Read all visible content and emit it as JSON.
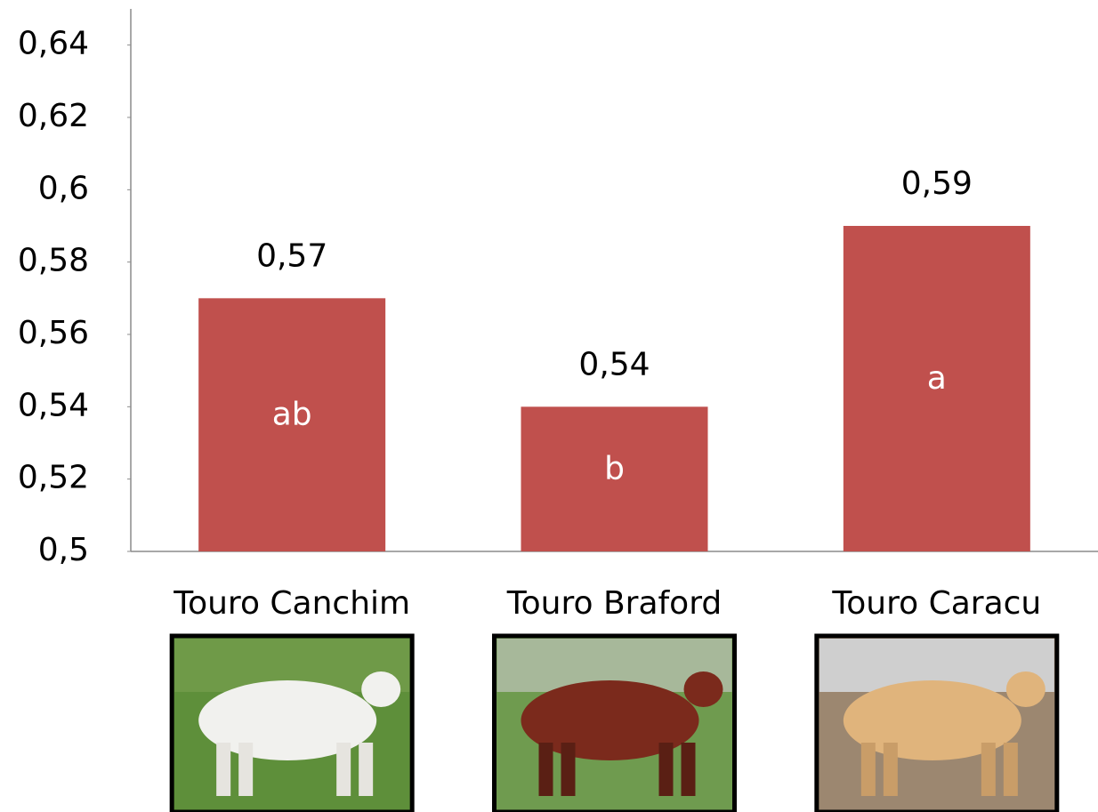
{
  "chart_data": {
    "type": "bar",
    "categories": [
      "Touro Canchim",
      "Touro Braford",
      "Touro Caracu"
    ],
    "values": [
      0.57,
      0.54,
      0.59
    ],
    "value_labels": [
      "0,57",
      "0,54",
      "0,59"
    ],
    "annotations": [
      "ab",
      "b",
      "a"
    ],
    "color": "#c0504d",
    "ylim": [
      0.5,
      0.65
    ],
    "yticks": [
      {
        "value": 0.5,
        "label": "0,5"
      },
      {
        "value": 0.52,
        "label": "0,52"
      },
      {
        "value": 0.54,
        "label": "0,54"
      },
      {
        "value": 0.56,
        "label": "0,56"
      },
      {
        "value": 0.58,
        "label": "0,58"
      },
      {
        "value": 0.6,
        "label": "0,6"
      },
      {
        "value": 0.62,
        "label": "0,62"
      },
      {
        "value": 0.64,
        "label": "0,64"
      }
    ]
  }
}
